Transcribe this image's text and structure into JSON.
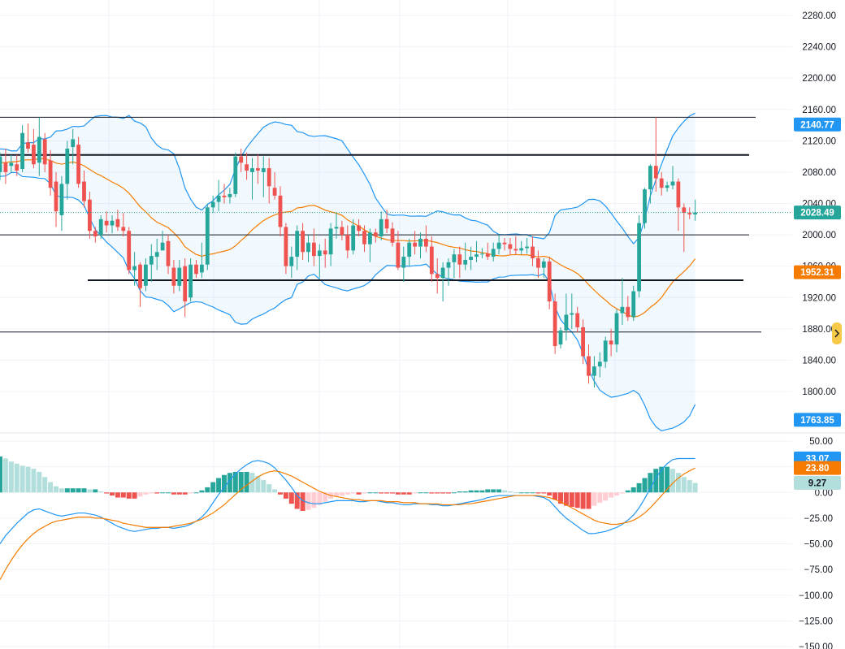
{
  "colors": {
    "up": "#26a69a",
    "down": "#ef5350",
    "band": "#2196f3",
    "band_fill": "rgba(33,150,243,0.06)",
    "basis": "#f57c00",
    "macd": "#2196f3",
    "signal": "#f57c00",
    "hist_up_strong": "#26a69a",
    "hist_up_weak": "#b2dfdb",
    "hist_down_strong": "#ef5350",
    "hist_down_weak": "#ffcdd2",
    "grid": "#f0f3fa",
    "last_price": "#26a69a",
    "accent_yellow": "#f7c948"
  },
  "price_axis": {
    "ticks": [
      "2280.00",
      "2240.00",
      "2200.00",
      "2160.00",
      "2120.00",
      "2080.00",
      "2040.00",
      "2000.00",
      "1960.00",
      "1920.00",
      "1880.00",
      "1840.00",
      "1800.00"
    ]
  },
  "macd_axis": {
    "ticks": [
      "50.00",
      "25.00",
      "0.00",
      "−25.00",
      "−50.00",
      "−75.00",
      "−100.00",
      "−125.00",
      "−150.00"
    ]
  },
  "badges": {
    "upper_band": "2140.77",
    "last_price": "2028.49",
    "basis": "1952.31",
    "lower_band": "1763.85",
    "macd": "33.07",
    "signal": "23.80",
    "histogram": "9.27",
    "alert_icon": "chevron-right-icon"
  },
  "chart_data": [
    {
      "type": "candlestick",
      "title": "",
      "ylim": [
        1763.85,
        2280
      ],
      "horizontal_levels": [
        2150,
        2102,
        2000,
        1942,
        1876
      ],
      "last_price": 2028.49,
      "bollinger": {
        "upper": 2140.77,
        "basis": 1952.31,
        "lower": 1763.85
      },
      "candles": [
        [
          2080,
          2105,
          2070,
          2100
        ],
        [
          2092,
          2110,
          2065,
          2080
        ],
        [
          2088,
          2102,
          2080,
          2092
        ],
        [
          2090,
          2102,
          2075,
          2082
        ],
        [
          2084,
          2140,
          2080,
          2130
        ],
        [
          2118,
          2142,
          2105,
          2110
        ],
        [
          2115,
          2135,
          2085,
          2090
        ],
        [
          2092,
          2150,
          2075,
          2125
        ],
        [
          2122,
          2130,
          2080,
          2090
        ],
        [
          2095,
          2108,
          2050,
          2060
        ],
        [
          2068,
          2080,
          2010,
          2030
        ],
        [
          2025,
          2075,
          2005,
          2065
        ],
        [
          2065,
          2120,
          2045,
          2110
        ],
        [
          2112,
          2135,
          2090,
          2122
        ],
        [
          2115,
          2125,
          2060,
          2065
        ],
        [
          2068,
          2082,
          2035,
          2043
        ],
        [
          2045,
          2055,
          1995,
          2005
        ],
        [
          2005,
          2010,
          1990,
          1998
        ],
        [
          2000,
          2025,
          1995,
          2020
        ],
        [
          2018,
          2030,
          2003,
          2012
        ],
        [
          2012,
          2025,
          2002,
          2018
        ],
        [
          2020,
          2032,
          2005,
          2010
        ],
        [
          2010,
          2028,
          1998,
          2005
        ],
        [
          2005,
          2010,
          1950,
          1955
        ],
        [
          1955,
          1978,
          1935,
          1960
        ],
        [
          1962,
          1965,
          1908,
          1932
        ],
        [
          1935,
          1970,
          1928,
          1962
        ],
        [
          1962,
          1988,
          1940,
          1973
        ],
        [
          1972,
          1995,
          1955,
          1978
        ],
        [
          1980,
          2005,
          1985,
          1990
        ],
        [
          1992,
          2000,
          1950,
          1960
        ],
        [
          1958,
          1968,
          1925,
          1935
        ],
        [
          1935,
          1968,
          1928,
          1958
        ],
        [
          1960,
          1970,
          1895,
          1915
        ],
        [
          1920,
          1970,
          1915,
          1962
        ],
        [
          1962,
          1968,
          1945,
          1950
        ],
        [
          1952,
          1990,
          1945,
          1962
        ],
        [
          1962,
          2040,
          1955,
          2035
        ],
        [
          2035,
          2050,
          2028,
          2042
        ],
        [
          2042,
          2070,
          2030,
          2050
        ],
        [
          2050,
          2065,
          2040,
          2048
        ],
        [
          2048,
          2060,
          2040,
          2052
        ],
        [
          2052,
          2105,
          2048,
          2100
        ],
        [
          2100,
          2110,
          2080,
          2092
        ],
        [
          2090,
          2105,
          2070,
          2082
        ],
        [
          2080,
          2098,
          2045,
          2085
        ],
        [
          2085,
          2102,
          2065,
          2082
        ],
        [
          2080,
          2100,
          2048,
          2085
        ],
        [
          2085,
          2098,
          2040,
          2062
        ],
        [
          2060,
          2080,
          2045,
          2050
        ],
        [
          2050,
          2062,
          1998,
          2010
        ],
        [
          2010,
          2015,
          1950,
          1960
        ],
        [
          1960,
          1985,
          1945,
          1972
        ],
        [
          1972,
          2012,
          1955,
          2005
        ],
        [
          2005,
          2015,
          1968,
          1978
        ],
        [
          1978,
          2000,
          1965,
          1990
        ],
        [
          1990,
          2008,
          1960,
          1973
        ],
        [
          1973,
          1988,
          1945,
          1980
        ],
        [
          1980,
          1995,
          1958,
          1975
        ],
        [
          1975,
          2015,
          1960,
          2008
        ],
        [
          2008,
          2028,
          1995,
          2010
        ],
        [
          2010,
          2018,
          1993,
          2000
        ],
        [
          2000,
          2012,
          1970,
          1980
        ],
        [
          1980,
          2020,
          1975,
          2012
        ],
        [
          2012,
          2020,
          1998,
          2005
        ],
        [
          2005,
          2012,
          1978,
          1988
        ],
        [
          1988,
          2008,
          1965,
          2003
        ],
        [
          2003,
          2008,
          1990,
          1998
        ],
        [
          1998,
          2030,
          1993,
          2020
        ],
        [
          2020,
          2032,
          2002,
          2008
        ],
        [
          2008,
          2016,
          1985,
          1990
        ],
        [
          1990,
          2005,
          1955,
          1958
        ],
        [
          1958,
          1985,
          1940,
          1972
        ],
        [
          1972,
          1995,
          1960,
          1990
        ],
        [
          1990,
          2005,
          1975,
          1985
        ],
        [
          1985,
          2003,
          1970,
          1995
        ],
        [
          1995,
          2012,
          1978,
          1985
        ],
        [
          1985,
          1998,
          1940,
          1950
        ],
        [
          1950,
          1970,
          1925,
          1945
        ],
        [
          1945,
          1965,
          1915,
          1958
        ],
        [
          1958,
          1970,
          1935,
          1965
        ],
        [
          1965,
          1982,
          1945,
          1975
        ],
        [
          1975,
          1985,
          1945,
          1962
        ],
        [
          1962,
          1990,
          1955,
          1968
        ],
        [
          1968,
          1985,
          1955,
          1972
        ],
        [
          1972,
          1992,
          1965,
          1975
        ],
        [
          1975,
          1983,
          1970,
          1976
        ],
        [
          1976,
          1990,
          1968,
          1972
        ],
        [
          1972,
          1990,
          1966,
          1982
        ],
        [
          1982,
          2000,
          1975,
          1990
        ],
        [
          1990,
          1996,
          1980,
          1988
        ],
        [
          1988,
          1996,
          1975,
          1982
        ],
        [
          1982,
          1998,
          1975,
          1980
        ],
        [
          1980,
          1992,
          1975,
          1983
        ],
        [
          1983,
          1996,
          1976,
          1985
        ],
        [
          1985,
          1998,
          1960,
          1970
        ],
        [
          1970,
          1980,
          1945,
          1958
        ],
        [
          1958,
          1970,
          1945,
          1966
        ],
        [
          1966,
          1972,
          1905,
          1915
        ],
        [
          1915,
          1925,
          1848,
          1858
        ],
        [
          1860,
          1882,
          1855,
          1878
        ],
        [
          1878,
          1925,
          1865,
          1898
        ],
        [
          1898,
          1925,
          1880,
          1900
        ],
        [
          1900,
          1908,
          1875,
          1882
        ],
        [
          1882,
          1892,
          1835,
          1845
        ],
        [
          1845,
          1860,
          1810,
          1820
        ],
        [
          1820,
          1845,
          1805,
          1832
        ],
        [
          1832,
          1850,
          1818,
          1838
        ],
        [
          1838,
          1870,
          1830,
          1865
        ],
        [
          1865,
          1880,
          1845,
          1860
        ],
        [
          1860,
          1905,
          1850,
          1900
        ],
        [
          1900,
          1945,
          1885,
          1908
        ],
        [
          1908,
          1922,
          1890,
          1895
        ],
        [
          1895,
          1935,
          1890,
          1928
        ],
        [
          1928,
          2025,
          1920,
          2015
        ],
        [
          2015,
          2060,
          2008,
          2058
        ],
        [
          2058,
          2090,
          2040,
          2088
        ],
        [
          2088,
          2150,
          2055,
          2072
        ],
        [
          2072,
          2080,
          2050,
          2060
        ],
        [
          2060,
          2068,
          2055,
          2063
        ],
        [
          2063,
          2088,
          2058,
          2068
        ],
        [
          2068,
          2072,
          2005,
          2035
        ],
        [
          2035,
          2040,
          1978,
          2028
        ],
        [
          2028,
          2035,
          2020,
          2026
        ],
        [
          2026,
          2045,
          2018,
          2028.49
        ]
      ]
    },
    {
      "type": "macd",
      "title": "",
      "ylim": [
        -150,
        50
      ],
      "last": {
        "macd": 33.07,
        "signal": 23.8,
        "histogram": 9.27
      },
      "macd": [
        -50,
        -42,
        -36,
        -30,
        -25,
        -20,
        -17,
        -16,
        -18,
        -20,
        -22,
        -23,
        -22,
        -21,
        -20,
        -20,
        -21,
        -22,
        -24,
        -27,
        -30,
        -33,
        -35,
        -37,
        -38,
        -37,
        -36,
        -35,
        -35,
        -34,
        -34,
        -35,
        -34,
        -33,
        -31,
        -28,
        -24,
        -18,
        -10,
        -2,
        5,
        12,
        18,
        23,
        27,
        30,
        31,
        30,
        28,
        24,
        18,
        12,
        5,
        -3,
        -8,
        -10,
        -11,
        -11,
        -10,
        -9,
        -8,
        -8,
        -8,
        -8,
        -9,
        -9,
        -8,
        -8,
        -9,
        -10,
        -10,
        -11,
        -12,
        -12,
        -11,
        -11,
        -11,
        -12,
        -12,
        -13,
        -13,
        -12,
        -11,
        -10,
        -9,
        -8,
        -7,
        -5,
        -4,
        -3,
        -3,
        -3,
        -3,
        -3,
        -3,
        -3,
        -4,
        -5,
        -8,
        -14,
        -20,
        -25,
        -29,
        -33,
        -37,
        -40,
        -40,
        -39,
        -38,
        -36,
        -34,
        -31,
        -27,
        -22,
        -15,
        -6,
        4,
        14,
        22,
        28,
        32,
        33,
        33,
        33,
        33.07
      ],
      "signal": [
        -85,
        -75,
        -66,
        -58,
        -51,
        -45,
        -40,
        -36,
        -33,
        -30,
        -28,
        -27,
        -26,
        -25,
        -24,
        -24,
        -24,
        -25,
        -25,
        -26,
        -27,
        -28,
        -30,
        -31,
        -32,
        -33,
        -34,
        -34,
        -34,
        -34,
        -34,
        -33,
        -32,
        -31,
        -30,
        -28,
        -26,
        -23,
        -20,
        -16,
        -12,
        -7,
        -2,
        3,
        7,
        11,
        15,
        18,
        20,
        21,
        20,
        18,
        16,
        13,
        10,
        7,
        4,
        1,
        -1,
        -3,
        -4,
        -5,
        -6,
        -7,
        -7,
        -8,
        -8,
        -8,
        -8,
        -9,
        -9,
        -9,
        -10,
        -10,
        -10,
        -11,
        -11,
        -11,
        -11,
        -12,
        -12,
        -12,
        -12,
        -11,
        -11,
        -10,
        -9,
        -8,
        -7,
        -6,
        -5,
        -4,
        -3,
        -3,
        -3,
        -3,
        -3,
        -4,
        -5,
        -7,
        -9,
        -12,
        -15,
        -18,
        -21,
        -24,
        -27,
        -29,
        -30,
        -31,
        -31,
        -30,
        -29,
        -27,
        -24,
        -20,
        -15,
        -9,
        -3,
        3,
        9,
        14,
        18,
        21,
        23.8
      ]
    }
  ]
}
